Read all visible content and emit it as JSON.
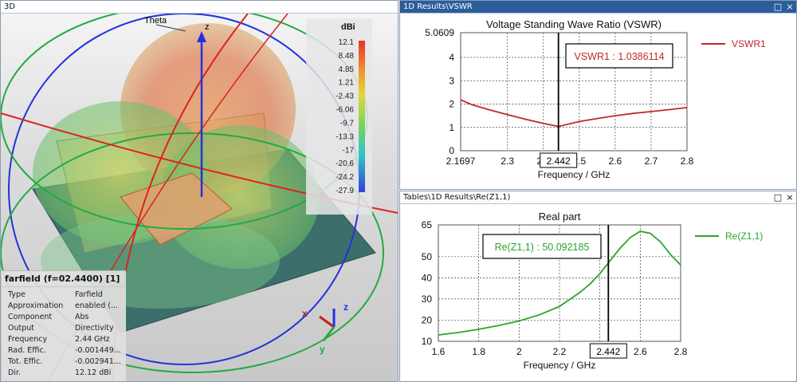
{
  "panel3d": {
    "title": "3D",
    "theta_label": "Theta",
    "axis_z": "z",
    "legend": {
      "unit": "dBi",
      "ticks": [
        "12.1",
        "8.48",
        "4.85",
        "1.21",
        "-2.43",
        "-6.06",
        "-9.7",
        "-13.3",
        "-17",
        "-20.6",
        "-24.2",
        "-27.9"
      ]
    },
    "triad": {
      "x": "x",
      "y": "y",
      "z": "z"
    },
    "info": {
      "header": "farfield (f=02.4400) [1]",
      "rows": [
        {
          "key": "Type",
          "value": "Farfield"
        },
        {
          "key": "Approximation",
          "value": "enabled (..."
        },
        {
          "key": "Component",
          "value": "Abs"
        },
        {
          "key": "Output",
          "value": "Directivity"
        },
        {
          "key": "Frequency",
          "value": "2.44 GHz"
        },
        {
          "key": "Rad. Effic.",
          "value": "-0.001449..."
        },
        {
          "key": "Tot. Effic.",
          "value": "-0.002941..."
        },
        {
          "key": "Dir.",
          "value": "12.12 dBi"
        }
      ]
    }
  },
  "vswr_window": {
    "title": "1D Results\\VSWR",
    "controls": {
      "maximize": "□",
      "close": "×"
    },
    "marker_freq": "2.442",
    "marker_label": "VSWR1 : 1.0386114"
  },
  "z_window": {
    "title": "Tables\\1D Results\\Re(Z1,1)",
    "controls": {
      "maximize": "□",
      "close": "×"
    },
    "marker_freq": "2.442",
    "marker_label": "Re(Z1,1) : 50.092185"
  },
  "chart_data": [
    {
      "type": "line",
      "title": "Voltage Standing Wave Ratio (VSWR)",
      "xlabel": "Frequency / GHz",
      "ylabel": "",
      "xlim": [
        2.1697,
        2.8
      ],
      "ylim": [
        0,
        5.0609
      ],
      "xticks": [
        "2.1697",
        "2.3",
        "2.4",
        "2.5",
        "2.6",
        "2.7",
        "2.8"
      ],
      "yticks": [
        "0",
        "1",
        "2",
        "3",
        "4",
        "5.0609"
      ],
      "legend_position": "right",
      "grid": true,
      "series": [
        {
          "name": "VSWR1",
          "color": "#c0282d",
          "x": [
            2.1697,
            2.2,
            2.25,
            2.3,
            2.35,
            2.4,
            2.442,
            2.5,
            2.55,
            2.6,
            2.65,
            2.7,
            2.75,
            2.8
          ],
          "y": [
            2.18,
            1.98,
            1.75,
            1.55,
            1.35,
            1.17,
            1.04,
            1.25,
            1.38,
            1.5,
            1.6,
            1.68,
            1.76,
            1.85
          ]
        }
      ],
      "marker_x": 2.442
    },
    {
      "type": "line",
      "title": "Real part",
      "xlabel": "Frequency / GHz",
      "ylabel": "",
      "xlim": [
        1.6,
        2.8
      ],
      "ylim": [
        10,
        65
      ],
      "xticks": [
        "1.6",
        "1.8",
        "2",
        "2.2",
        "2.4",
        "2.6",
        "2.8"
      ],
      "yticks": [
        "10",
        "20",
        "30",
        "40",
        "50",
        "65"
      ],
      "legend_position": "right",
      "grid": true,
      "series": [
        {
          "name": "Re(Z1,1)",
          "color": "#2aa52a",
          "x": [
            1.6,
            1.7,
            1.8,
            1.9,
            2.0,
            2.1,
            2.2,
            2.3,
            2.35,
            2.4,
            2.45,
            2.5,
            2.55,
            2.6,
            2.65,
            2.7,
            2.75,
            2.8
          ],
          "y": [
            13,
            14.2,
            15.7,
            17.5,
            19.6,
            22.5,
            26.5,
            33,
            37,
            42,
            48,
            54,
            59,
            62,
            61,
            57,
            51,
            46
          ]
        }
      ],
      "marker_x": 2.442
    }
  ]
}
